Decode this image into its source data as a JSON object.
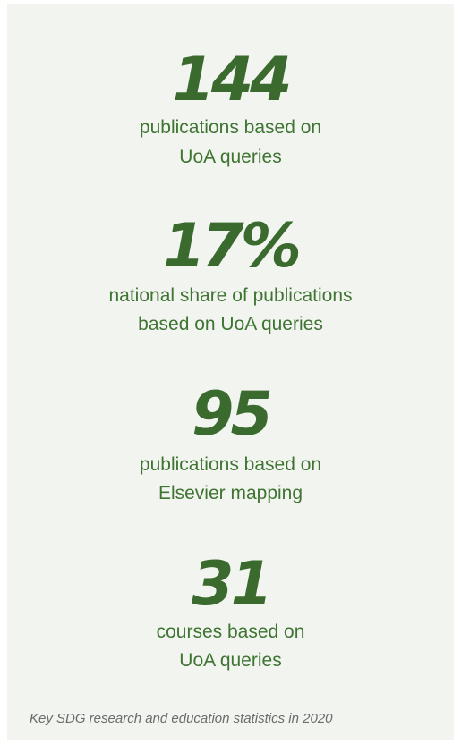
{
  "stats": [
    {
      "value": "144",
      "lines": [
        "publications based on",
        "UoA queries"
      ]
    },
    {
      "value": "17%",
      "lines": [
        "national share of publications",
        "based on UoA queries"
      ]
    },
    {
      "value": "95",
      "lines": [
        "publications based on",
        "Elsevier mapping"
      ]
    },
    {
      "value": "31",
      "lines": [
        "courses based on",
        "UoA queries"
      ]
    }
  ],
  "caption": "Key SDG research and education statistics in 2020"
}
